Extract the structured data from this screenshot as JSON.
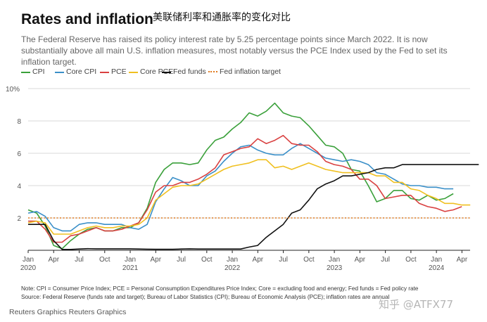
{
  "header": {
    "title": "Rates and inflation",
    "chinese_title": "美联储利率和通胀率的变化对比",
    "subtitle": "The Federal Reserve has raised its policy interest rate by 5.25 percentage points since March 2022. It is now substantially above all main U.S. inflation measures, most notably versus the PCE Index used by the Fed to set its inflation target."
  },
  "colors": {
    "cpi": "#3aa03a",
    "core_cpi": "#3a8fc8",
    "pce": "#d94040",
    "core_pce": "#f0c020",
    "fed_funds": "#111111",
    "fed_target": "#e07b20",
    "grid": "#d8d8d8"
  },
  "chart_data": {
    "type": "line",
    "ylim": [
      0,
      10
    ],
    "yticks": [
      2,
      4,
      6,
      8
    ],
    "ytick_labels": [
      "2",
      "4",
      "6",
      "8"
    ],
    "ytop_label": "10%",
    "xlim": [
      2020.0,
      2024.33
    ],
    "xticks": [
      {
        "x": 2020.0,
        "label": "Jan",
        "year": "2020"
      },
      {
        "x": 2020.25,
        "label": "Apr",
        "year": ""
      },
      {
        "x": 2020.5,
        "label": "Jul",
        "year": ""
      },
      {
        "x": 2020.75,
        "label": "Oct",
        "year": ""
      },
      {
        "x": 2021.0,
        "label": "Jan",
        "year": "2021"
      },
      {
        "x": 2021.25,
        "label": "Apr",
        "year": ""
      },
      {
        "x": 2021.5,
        "label": "Jul",
        "year": ""
      },
      {
        "x": 2021.75,
        "label": "Oct",
        "year": ""
      },
      {
        "x": 2022.0,
        "label": "Jan",
        "year": "2022"
      },
      {
        "x": 2022.25,
        "label": "Apr",
        "year": ""
      },
      {
        "x": 2022.5,
        "label": "Jul",
        "year": ""
      },
      {
        "x": 2022.75,
        "label": "Oct",
        "year": ""
      },
      {
        "x": 2023.0,
        "label": "Jan",
        "year": "2023"
      },
      {
        "x": 2023.25,
        "label": "Apr",
        "year": ""
      },
      {
        "x": 2023.5,
        "label": "Jul",
        "year": ""
      },
      {
        "x": 2023.75,
        "label": "Oct",
        "year": ""
      },
      {
        "x": 2024.0,
        "label": "Jan",
        "year": "2024"
      },
      {
        "x": 2024.25,
        "label": "Apr",
        "year": ""
      }
    ],
    "series": [
      {
        "key": "cpi",
        "name": "CPI",
        "style": "solid",
        "values": [
          2.5,
          2.3,
          1.5,
          0.3,
          0.1,
          0.6,
          1.0,
          1.3,
          1.4,
          1.2,
          1.2,
          1.4,
          1.4,
          1.7,
          2.6,
          4.2,
          5.0,
          5.4,
          5.4,
          5.3,
          5.4,
          6.2,
          6.8,
          7.0,
          7.5,
          7.9,
          8.5,
          8.3,
          8.6,
          9.1,
          8.5,
          8.3,
          8.2,
          7.7,
          7.1,
          6.5,
          6.4,
          6.0,
          5.0,
          4.9,
          4.0,
          3.0,
          3.2,
          3.7,
          3.7,
          3.2,
          3.1,
          3.4,
          3.1,
          3.2,
          3.5
        ]
      },
      {
        "key": "core_cpi",
        "name": "Core CPI",
        "style": "solid",
        "values": [
          2.3,
          2.4,
          2.1,
          1.4,
          1.2,
          1.2,
          1.6,
          1.7,
          1.7,
          1.6,
          1.6,
          1.6,
          1.4,
          1.3,
          1.6,
          3.0,
          3.8,
          4.5,
          4.3,
          4.0,
          4.0,
          4.6,
          4.9,
          5.5,
          6.0,
          6.4,
          6.5,
          6.2,
          6.0,
          5.9,
          5.9,
          6.3,
          6.6,
          6.3,
          6.0,
          5.7,
          5.6,
          5.5,
          5.6,
          5.5,
          5.3,
          4.8,
          4.7,
          4.4,
          4.1,
          4.0,
          4.0,
          3.9,
          3.9,
          3.8,
          3.8
        ]
      },
      {
        "key": "pce",
        "name": "PCE",
        "style": "solid",
        "values": [
          1.8,
          1.8,
          1.3,
          0.5,
          0.5,
          0.9,
          1.0,
          1.2,
          1.4,
          1.2,
          1.2,
          1.3,
          1.5,
          1.7,
          2.5,
          3.6,
          4.0,
          4.0,
          4.2,
          4.2,
          4.4,
          4.7,
          5.1,
          5.9,
          6.1,
          6.3,
          6.4,
          6.9,
          6.6,
          6.8,
          7.1,
          6.6,
          6.5,
          6.5,
          6.1,
          5.5,
          5.3,
          5.2,
          5.0,
          4.4,
          4.4,
          4.0,
          3.2,
          3.3,
          3.4,
          3.4,
          2.9,
          2.7,
          2.6,
          2.4,
          2.5,
          2.7
        ]
      },
      {
        "key": "core_pce",
        "name": "Core PCE",
        "style": "solid",
        "values": [
          1.7,
          1.8,
          1.7,
          1.0,
          1.0,
          1.0,
          1.2,
          1.4,
          1.5,
          1.4,
          1.4,
          1.5,
          1.5,
          1.6,
          2.0,
          3.1,
          3.5,
          3.9,
          4.0,
          4.0,
          4.1,
          4.4,
          4.7,
          5.0,
          5.2,
          5.3,
          5.4,
          5.6,
          5.6,
          5.1,
          5.2,
          5.0,
          5.2,
          5.4,
          5.2,
          5.0,
          4.9,
          4.8,
          4.8,
          4.8,
          4.8,
          4.6,
          4.6,
          4.2,
          4.2,
          3.8,
          3.7,
          3.4,
          3.2,
          2.9,
          2.9,
          2.8,
          2.8
        ]
      },
      {
        "key": "fed_funds",
        "name": "Fed funds",
        "style": "solid",
        "values": [
          1.6,
          1.6,
          1.6,
          0.6,
          0.05,
          0.05,
          0.08,
          0.1,
          0.09,
          0.09,
          0.09,
          0.09,
          0.09,
          0.08,
          0.07,
          0.06,
          0.06,
          0.06,
          0.08,
          0.09,
          0.08,
          0.08,
          0.08,
          0.08,
          0.08,
          0.08,
          0.2,
          0.3,
          0.8,
          1.2,
          1.6,
          2.3,
          2.5,
          3.1,
          3.8,
          4.1,
          4.3,
          4.6,
          4.6,
          4.7,
          4.8,
          5.0,
          5.1,
          5.1,
          5.3,
          5.3,
          5.3,
          5.3,
          5.3,
          5.3,
          5.3,
          5.3,
          5.3,
          5.3
        ]
      },
      {
        "key": "fed_target",
        "name": "Fed inflation target",
        "style": "dotted",
        "values": [
          2.0,
          2.0
        ]
      }
    ],
    "series_start": 2020.0,
    "series_step": 0.0833,
    "target_span": [
      2020.0,
      2024.33
    ]
  },
  "notes": {
    "footnote_1": "Note: CPI = Consumer Price Index; PCE = Personal Consumption Expenditures Price Index; Core = excluding food and energy; Fed funds = Fed policy rate",
    "footnote_2": "Source: Federal Reserve (funds rate and target); Bureau of Labor Statistics (CPI); Bureau of Economic Analysis (PCE); inflation rates are annual",
    "credit": "Reuters Graphics Reuters Graphics",
    "watermark": "知乎 @ATFX77"
  }
}
